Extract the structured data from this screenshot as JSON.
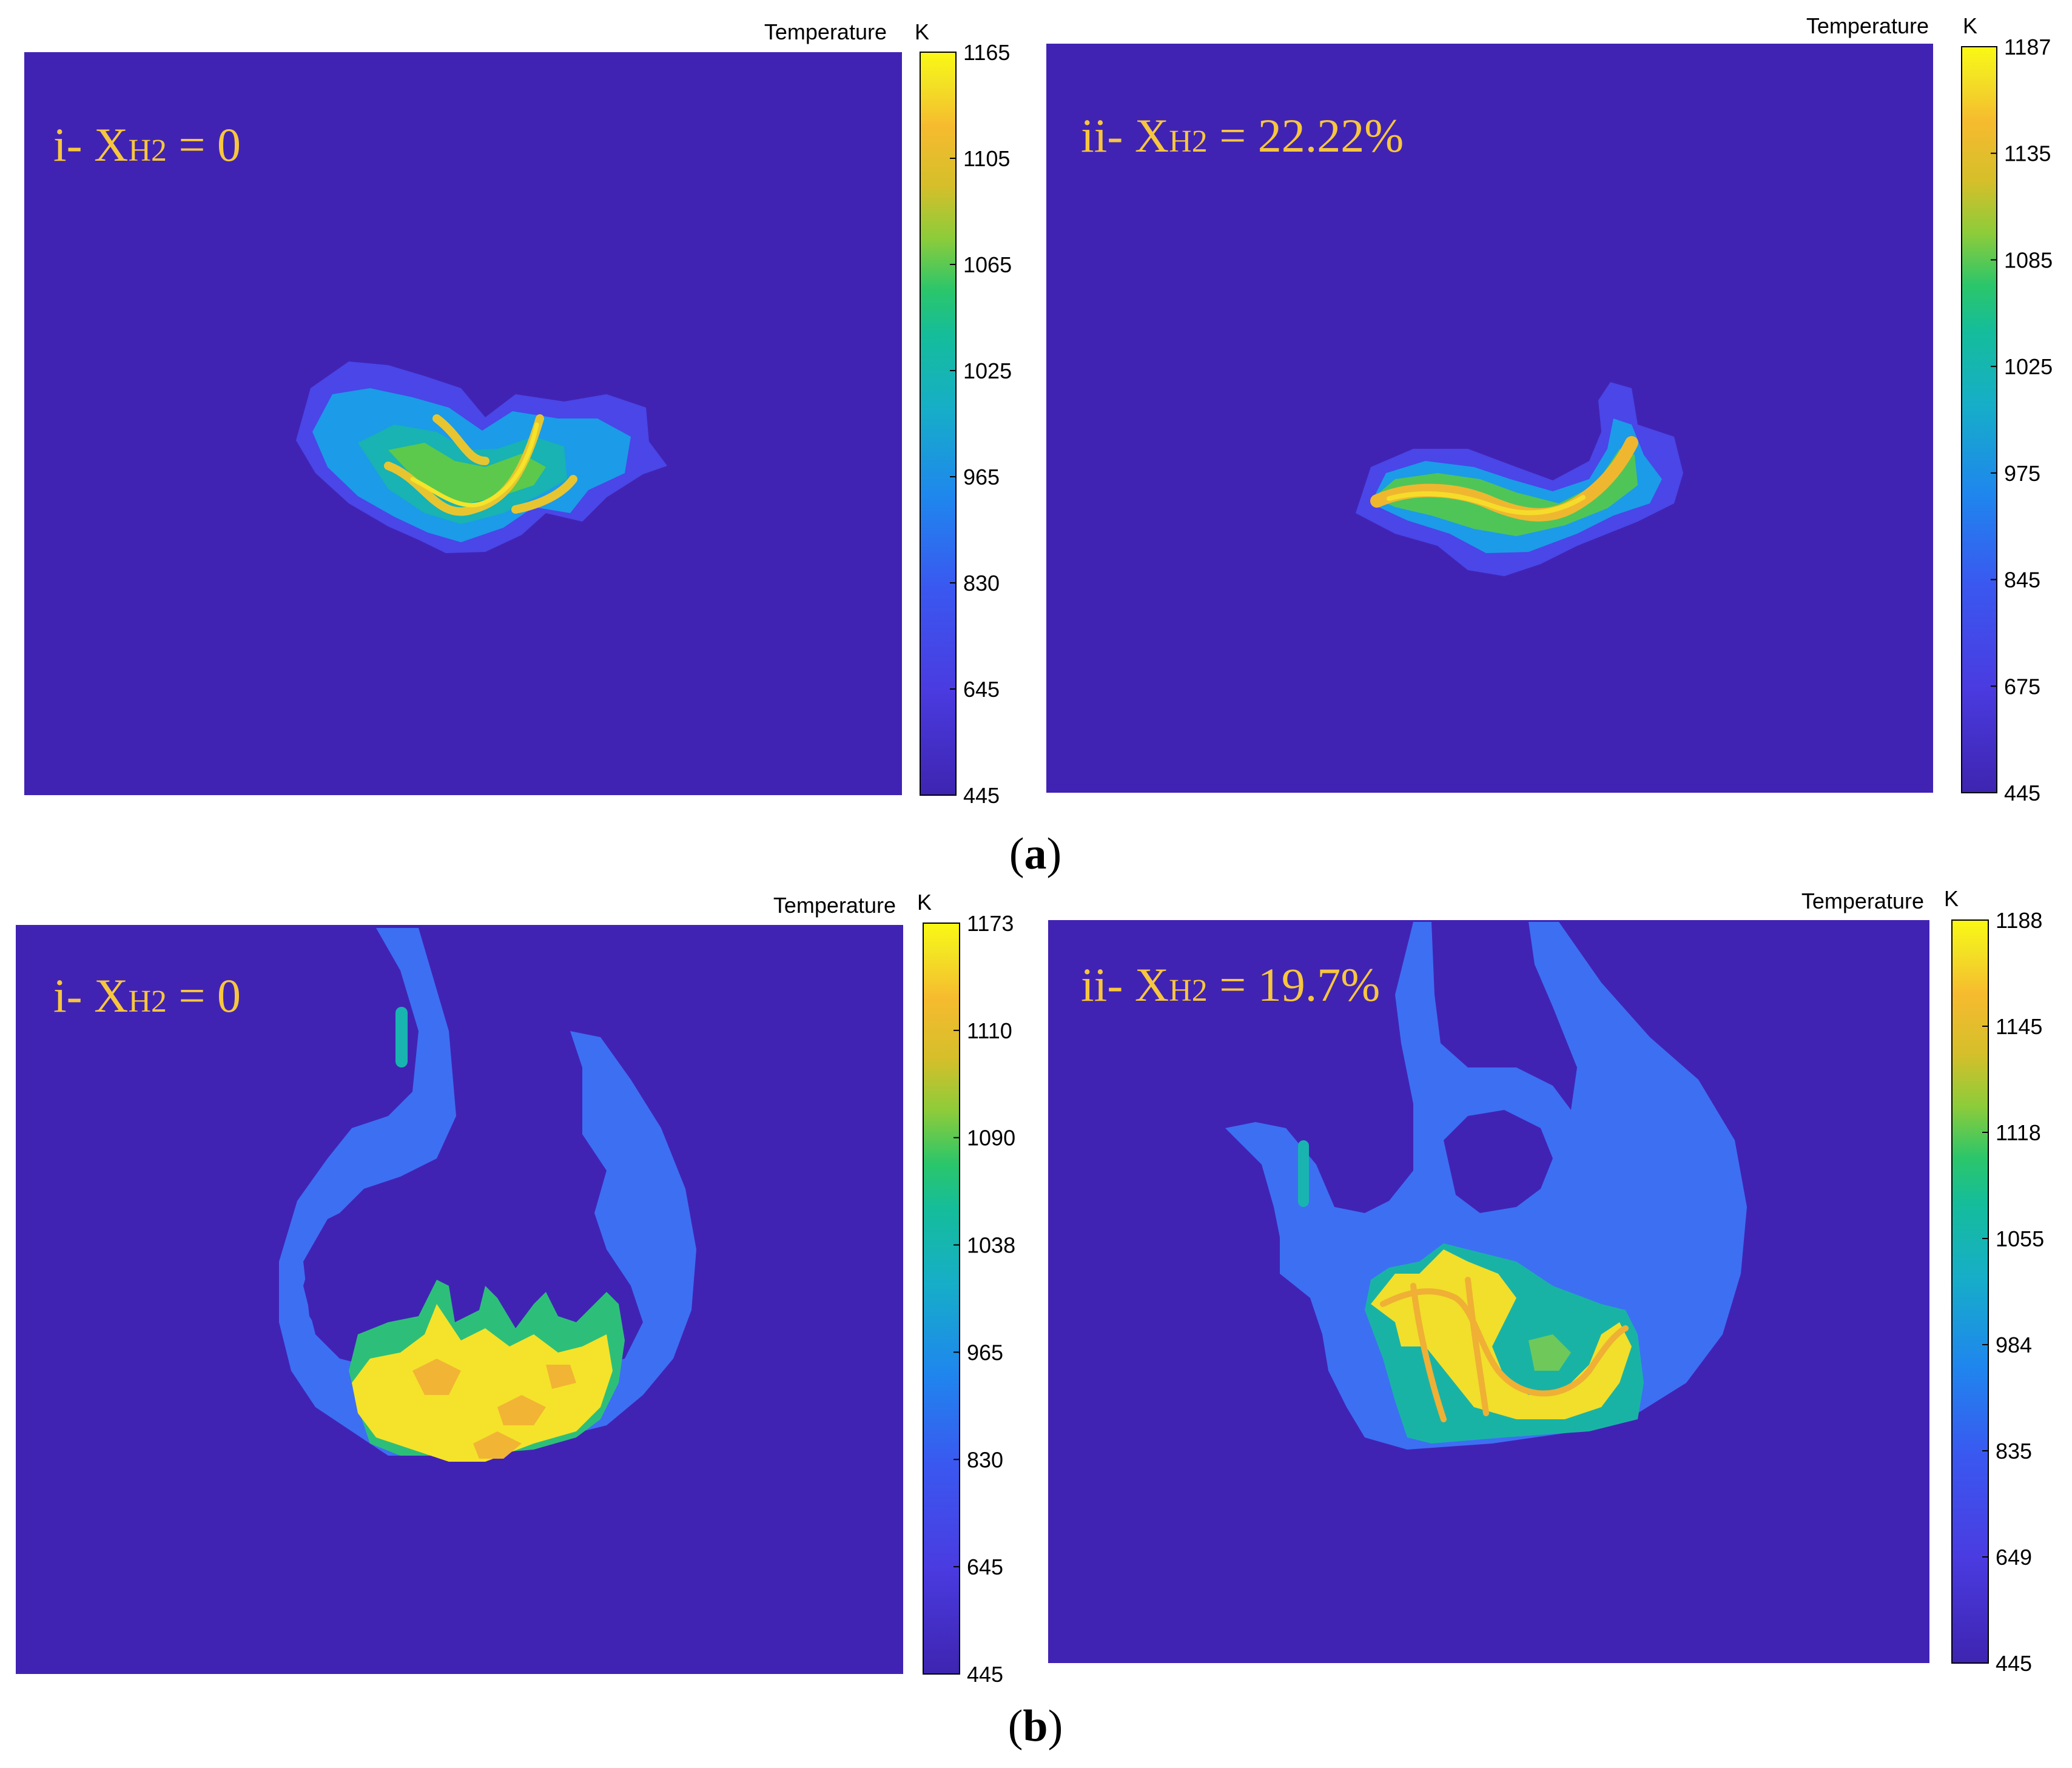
{
  "colors": {
    "background": "#4123b4",
    "colormap": [
      "#3e24b0",
      "#4a3be0",
      "#2f6ff2",
      "#1e96e6",
      "#13b9b6",
      "#2ec66e",
      "#8ccd37",
      "#d8bf2a",
      "#f8b82e",
      "#f3e524",
      "#fbf914"
    ],
    "label_color": "#f7c63e"
  },
  "figure": {
    "panel_a_label": {
      "open": "(",
      "letter": "a",
      "close": ")"
    },
    "panel_b_label": {
      "open": "(",
      "letter": "b",
      "close": ")"
    }
  },
  "chart_data": [
    {
      "type": "heatmap",
      "panel": "a-i",
      "annotation": {
        "prefix": "i- X",
        "subscript": "H2",
        "suffix": " = 0"
      },
      "colorbar": {
        "title": "Temperature",
        "unit": "K",
        "min": 445,
        "max": 1165,
        "ticks": [
          1165,
          1105,
          1065,
          1025,
          965,
          830,
          645,
          445
        ]
      }
    },
    {
      "type": "heatmap",
      "panel": "a-ii",
      "annotation": {
        "prefix": "ii- X",
        "subscript": "H2",
        "suffix": " = 22.22%"
      },
      "colorbar": {
        "title": "Temperature",
        "unit": "K",
        "min": 445,
        "max": 1187,
        "ticks": [
          1187,
          1135,
          1085,
          1025,
          975,
          845,
          675,
          445
        ]
      }
    },
    {
      "type": "heatmap",
      "panel": "b-i",
      "annotation": {
        "prefix": "i- X",
        "subscript": "H2",
        "suffix": " = 0"
      },
      "colorbar": {
        "title": "Temperature",
        "unit": "K",
        "min": 445,
        "max": 1173,
        "ticks": [
          1173,
          1110,
          1090,
          1038,
          965,
          830,
          645,
          445
        ]
      }
    },
    {
      "type": "heatmap",
      "panel": "b-ii",
      "annotation": {
        "prefix": "ii- X",
        "subscript": "H2",
        "suffix": " = 19.7%"
      },
      "colorbar": {
        "title": "Temperature",
        "unit": "K",
        "min": 445,
        "max": 1188,
        "ticks": [
          1188,
          1145,
          1118,
          1055,
          984,
          835,
          649,
          445
        ]
      }
    }
  ]
}
